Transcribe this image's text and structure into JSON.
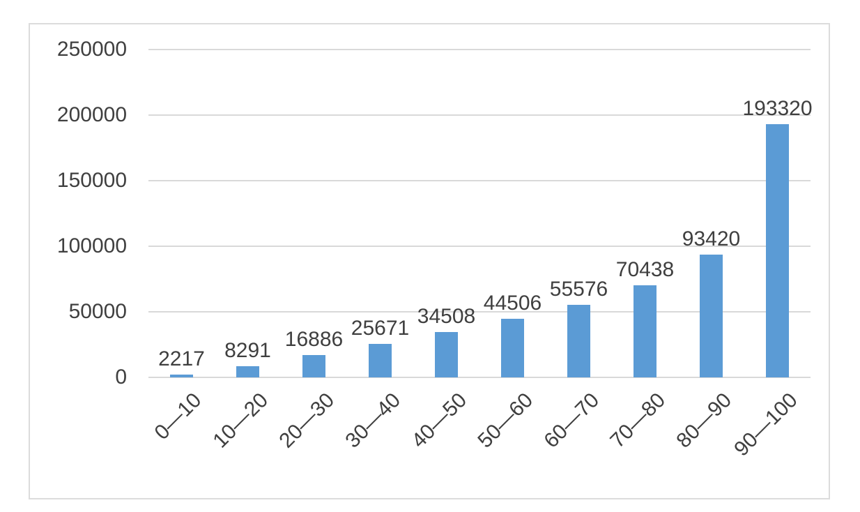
{
  "chart_data": {
    "type": "bar",
    "title": "",
    "xlabel": "",
    "ylabel": "",
    "categories": [
      "0—10",
      "10—20",
      "20—30",
      "30—40",
      "40—50",
      "50—60",
      "60—70",
      "70—80",
      "80—90",
      "90—100"
    ],
    "values": [
      2217,
      8291,
      16886,
      25671,
      34508,
      44506,
      55576,
      70438,
      93420,
      193320
    ],
    "data_labels": [
      "2217",
      "8291",
      "16886",
      "25671",
      "34508",
      "44506",
      "55576",
      "70438",
      "93420",
      "193320"
    ],
    "yticks": [
      "0",
      "50000",
      "100000",
      "150000",
      "200000",
      "250000"
    ],
    "ylim": [
      0,
      250000
    ],
    "ytick_interval": 50000,
    "grid": true,
    "legend_position": "none",
    "bar_color": "#5B9BD5",
    "gridline_color": "#D9D9D9",
    "frame_border_color": "#DCDCDC",
    "text_color": "#3F3F3F"
  }
}
